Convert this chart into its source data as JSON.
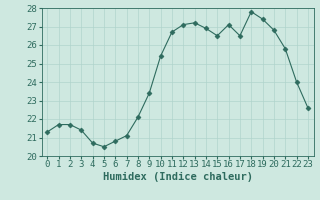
{
  "x": [
    0,
    1,
    2,
    3,
    4,
    5,
    6,
    7,
    8,
    9,
    10,
    11,
    12,
    13,
    14,
    15,
    16,
    17,
    18,
    19,
    20,
    21,
    22,
    23
  ],
  "y": [
    21.3,
    21.7,
    21.7,
    21.4,
    20.7,
    20.5,
    20.8,
    21.1,
    22.1,
    23.4,
    25.4,
    26.7,
    27.1,
    27.2,
    26.9,
    26.5,
    27.1,
    26.5,
    27.8,
    27.4,
    26.8,
    25.8,
    24.0,
    22.6
  ],
  "line_color": "#2e6b5e",
  "marker": "D",
  "marker_size": 2.5,
  "bg_color": "#cee8e0",
  "grid_color": "#b0d4cc",
  "xlabel": "Humidex (Indice chaleur)",
  "ylim": [
    20,
    28
  ],
  "xlim": [
    -0.5,
    23.5
  ],
  "yticks": [
    20,
    21,
    22,
    23,
    24,
    25,
    26,
    27,
    28
  ],
  "tick_color": "#2e6b5e",
  "label_fontsize": 7.5,
  "tick_fontsize": 6.5
}
